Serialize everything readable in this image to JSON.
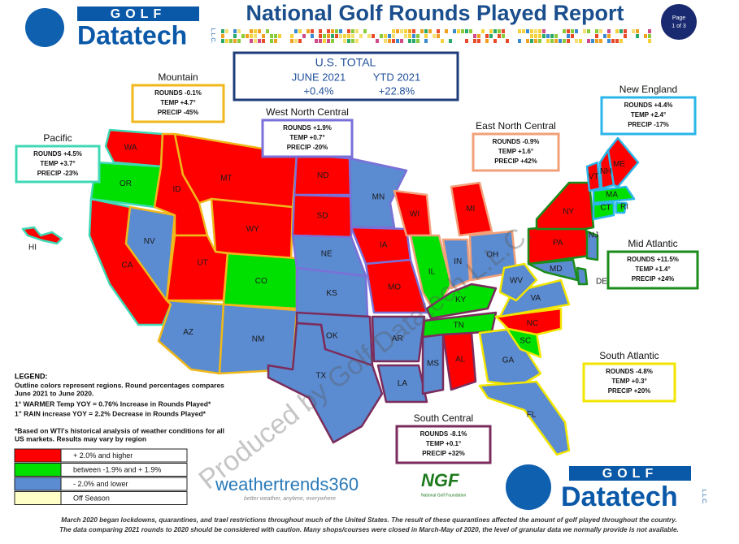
{
  "header": {
    "logo_top": "GOLF",
    "logo_main": "Datatech",
    "logo_suffix": "L.L.C.",
    "title": "National Golf Rounds Played Report",
    "page": [
      "Page",
      "1 of 3"
    ]
  },
  "us_total": {
    "title": "U.S. TOTAL",
    "headers": [
      "JUNE 2021",
      "YTD 2021"
    ],
    "values": [
      "+0.4%",
      "+22.8%"
    ]
  },
  "regions": [
    {
      "name": "Mountain",
      "color": "#f0b81a",
      "lines": [
        "ROUNDS -0.1%",
        "TEMP +4.7°",
        "PRECIP -45%"
      ]
    },
    {
      "name": "Pacific",
      "color": "#3fd8b4",
      "lines": [
        "ROUNDS +4.5%",
        "TEMP +3.7°",
        "PRECIP -23%"
      ]
    },
    {
      "name": "West North Central",
      "color": "#7a70d8",
      "lines": [
        "ROUNDS +1.9%",
        "TEMP +0.7°",
        "PRECIP -20%"
      ]
    },
    {
      "name": "East North Central",
      "color": "#f2a07a",
      "lines": [
        "ROUNDS -0.9%",
        "TEMP +1.6°",
        "PRECIP +42%"
      ]
    },
    {
      "name": "New England",
      "color": "#2ab6ea",
      "lines": [
        "ROUNDS +4.4%",
        "TEMP +2.4°",
        "PRECIP -17%"
      ]
    },
    {
      "name": "Mid Atlantic",
      "color": "#1b8c1b",
      "lines": [
        "ROUNDS +11.5%",
        "TEMP +1.4°",
        "PRECIP +24%"
      ]
    },
    {
      "name": "South Atlantic",
      "color": "#f2e600",
      "lines": [
        "ROUNDS -4.8%",
        "TEMP +0.3°",
        "PRECIP +20%"
      ]
    },
    {
      "name": "South Central",
      "color": "#7b2c5c",
      "lines": [
        "ROUNDS -8.1%",
        "TEMP +0.1°",
        "PRECIP +32%"
      ]
    }
  ],
  "states": [
    {
      "label": "WA",
      "key": 0
    },
    {
      "label": "OR",
      "key": 1
    },
    {
      "label": "CA",
      "key": 0
    },
    {
      "label": "NV",
      "key": 2
    },
    {
      "label": "ID",
      "key": 0
    },
    {
      "label": "MT",
      "key": 0
    },
    {
      "label": "WY",
      "key": 0
    },
    {
      "label": "UT",
      "key": 0
    },
    {
      "label": "CO",
      "key": 1
    },
    {
      "label": "AZ",
      "key": 2
    },
    {
      "label": "NM",
      "key": 2
    },
    {
      "label": "ND",
      "key": 0
    },
    {
      "label": "SD",
      "key": 0
    },
    {
      "label": "NE",
      "key": 2
    },
    {
      "label": "KS",
      "key": 2
    },
    {
      "label": "OK",
      "key": 2
    },
    {
      "label": "TX",
      "key": 2
    },
    {
      "label": "MN",
      "key": 2
    },
    {
      "label": "IA",
      "key": 0
    },
    {
      "label": "MO",
      "key": 0
    },
    {
      "label": "AR",
      "key": 2
    },
    {
      "label": "LA",
      "key": 2
    },
    {
      "label": "WI",
      "key": 0
    },
    {
      "label": "IL",
      "key": 1
    },
    {
      "label": "MI",
      "key": 0
    },
    {
      "label": "IN",
      "key": 2
    },
    {
      "label": "OH",
      "key": 2
    },
    {
      "label": "KY",
      "key": 1
    },
    {
      "label": "TN",
      "key": 1
    },
    {
      "label": "MS",
      "key": 2
    },
    {
      "label": "AL",
      "key": 0
    },
    {
      "label": "GA",
      "key": 2
    },
    {
      "label": "FL",
      "key": 2
    },
    {
      "label": "SC",
      "key": 1
    },
    {
      "label": "NC",
      "key": 0
    },
    {
      "label": "VA",
      "key": 2
    },
    {
      "label": "WV",
      "key": 2
    },
    {
      "label": "MD",
      "key": 2
    },
    {
      "label": "DE",
      "key": 2
    },
    {
      "label": "PA",
      "key": 0
    },
    {
      "label": "NJ",
      "key": 2
    },
    {
      "label": "NY",
      "key": 0
    },
    {
      "label": "CT",
      "key": 1
    },
    {
      "label": "RI",
      "key": 1
    },
    {
      "label": "MA",
      "key": 1
    },
    {
      "label": "VT",
      "key": 0
    },
    {
      "label": "NH",
      "key": 0
    },
    {
      "label": "ME",
      "key": 0
    },
    {
      "label": "HI",
      "key": 0
    }
  ],
  "legend": {
    "title": "LEGEND:",
    "lines": [
      "Outline colors represent regions. Round percentages compares",
      "June 2021 to June 2020.",
      "1° WARMER Temp YOY = 0.76% Increase in Rounds Played*",
      "1\" RAIN increase YOY = 2.2% Decrease in Rounds Played*",
      "*Based on WTI's historical analysis of weather conditions for all",
      "US markets. Results may vary by region"
    ],
    "items": [
      {
        "label": "+ 2.0% and higher",
        "color": "#ff0000"
      },
      {
        "label": "between -1.9% and + 1.9%",
        "color": "#00e000"
      },
      {
        "label": "- 2.0% and lower",
        "color": "#5b8bd0"
      },
      {
        "label": "Off Season",
        "color": "#ffffc8"
      }
    ]
  },
  "logos": {
    "weathertrends": "weathertrends360",
    "weathertrends_tag": "better weather, anytime, everywhere",
    "ngf": "NGF",
    "ngf_tag": "National Golf Foundation"
  },
  "watermark": "Produced by Golf Datatech L.L.C.",
  "footer": [
    "March 2020 began lockdowns, quarantines, and trael restrictions throughout much of the United States. The result of these quarantines affected the amount of golf played throughout the country.",
    "The data comparing 2021 rounds to 2020 should be considered with caution. Many shops/courses were closed in March-May of 2020, the level of granular data we normally provide is not available."
  ]
}
